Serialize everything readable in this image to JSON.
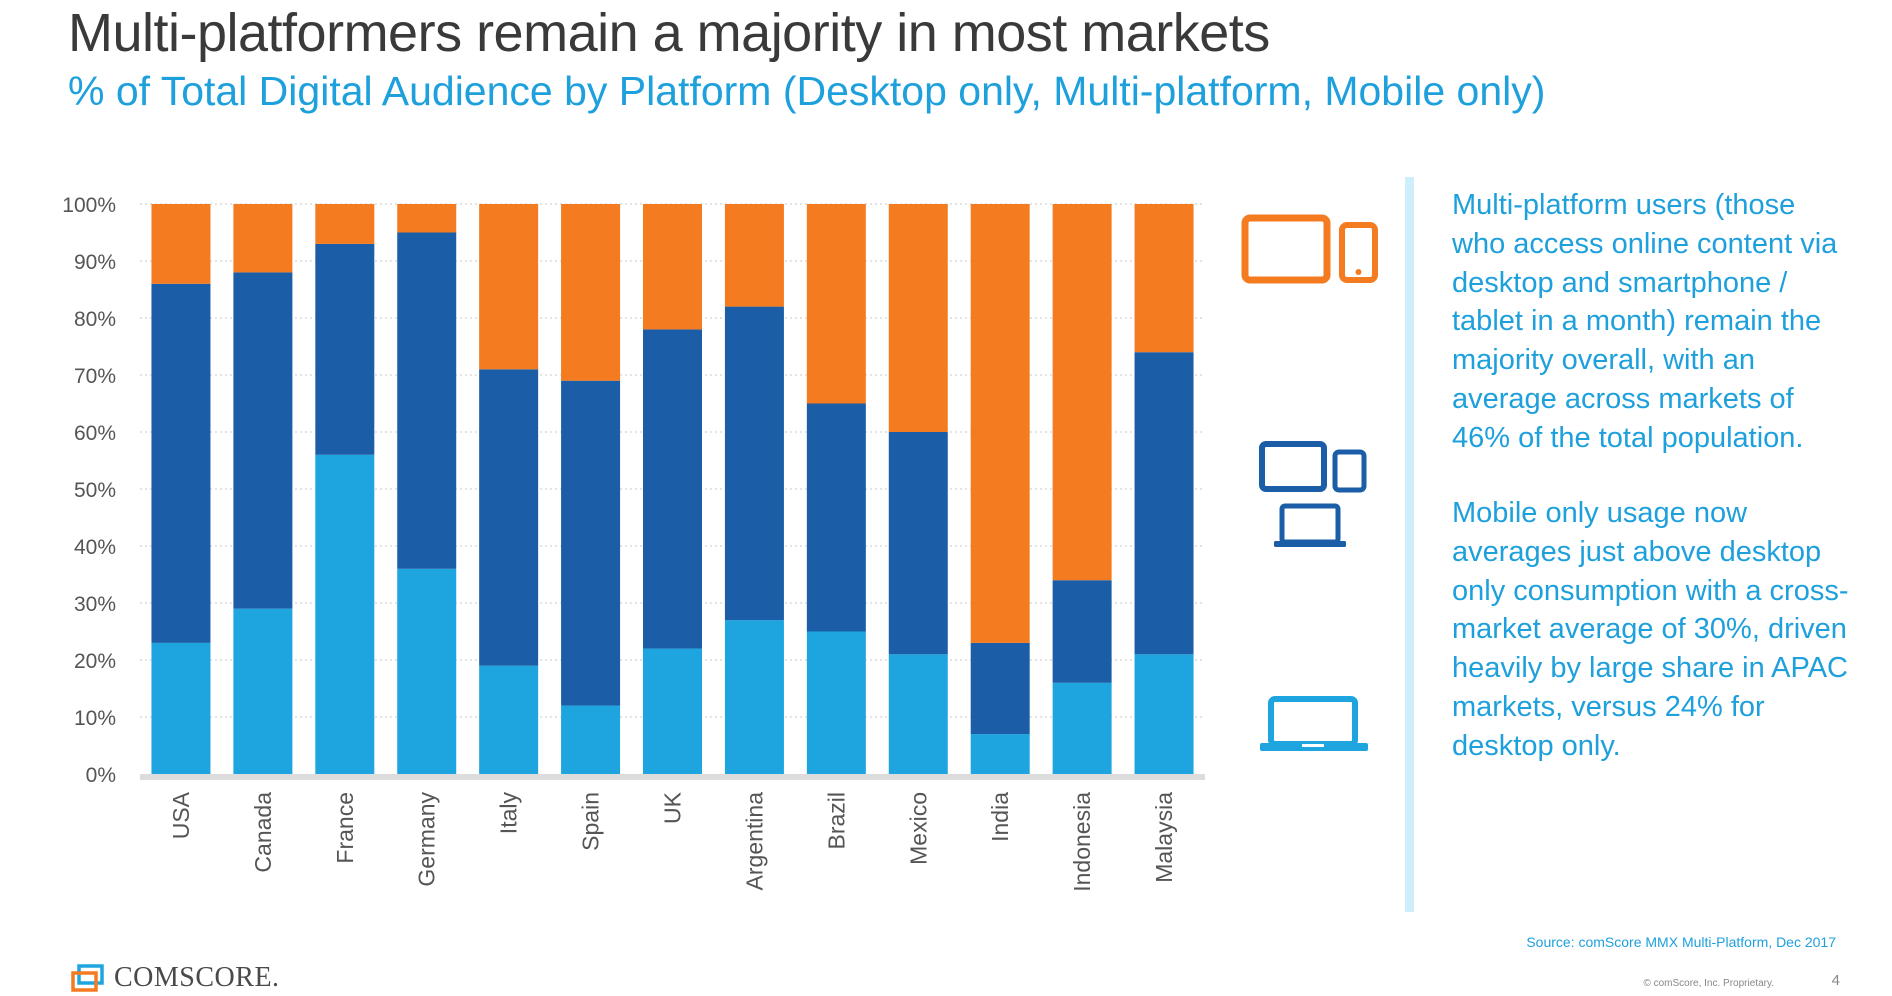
{
  "title": "Multi-platformers remain a majority in most markets",
  "subtitle": "% of Total Digital Audience by Platform (Desktop only, Multi-platform, Mobile only)",
  "notes": {
    "paragraph1": "Multi-platform users (those who access online content via desktop and smartphone / tablet in a month) remain the majority overall, with an average across markets of 46% of the total population.",
    "paragraph2": "Mobile only usage now averages just above desktop only consumption with a cross-market average of 30%, driven heavily by large share in APAC markets, versus 24% for desktop only."
  },
  "footer": {
    "source": "Source: comScore MMX Multi-Platform, Dec 2017",
    "logo_text": "COMSCORE.",
    "copyright": "© comScore, Inc. Proprietary.",
    "page_number": "4"
  },
  "icons": [
    "mobile-devices-icon",
    "multi-platform-devices-icon",
    "laptop-icon"
  ],
  "colors": {
    "mobile_only": "#f47b20",
    "multi_platform": "#1b5ea7",
    "desktop_only": "#1ea5e0",
    "accent": "#1ea0dc"
  },
  "chart_data": {
    "type": "bar",
    "stacked": true,
    "categories": [
      "USA",
      "Canada",
      "France",
      "Germany",
      "Italy",
      "Spain",
      "UK",
      "Argentina",
      "Brazil",
      "Mexico",
      "India",
      "Indonesia",
      "Malaysia"
    ],
    "series": [
      {
        "key": "desktop_only",
        "values": [
          23,
          29,
          56,
          36,
          19,
          12,
          22,
          27,
          25,
          21,
          7,
          16,
          21
        ]
      },
      {
        "key": "multi_platform",
        "values": [
          63,
          59,
          37,
          59,
          52,
          57,
          56,
          55,
          40,
          39,
          16,
          18,
          53
        ]
      },
      {
        "key": "mobile_only",
        "values": [
          14,
          12,
          7,
          5,
          29,
          31,
          22,
          18,
          35,
          40,
          77,
          66,
          26
        ]
      }
    ],
    "ylim": [
      0,
      100
    ],
    "yticks": [
      "0%",
      "10%",
      "20%",
      "30%",
      "40%",
      "50%",
      "60%",
      "70%",
      "80%",
      "90%",
      "100%"
    ],
    "grid": true
  }
}
